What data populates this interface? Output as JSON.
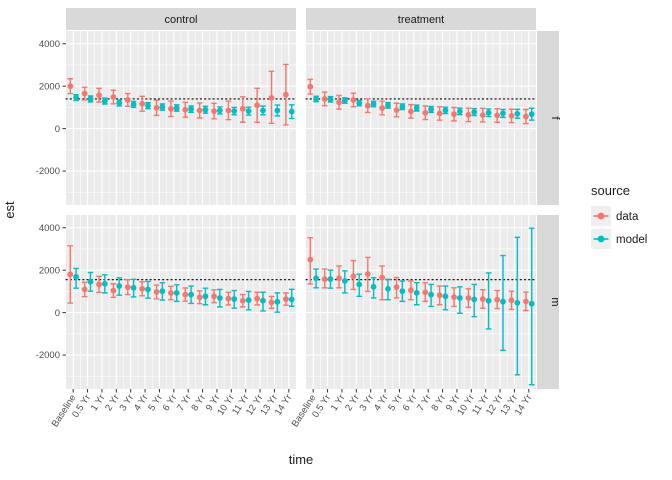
{
  "chart_data": {
    "type": "pointrange-errorbar-faceted",
    "title": "",
    "xlabel": "time",
    "ylabel": "est",
    "ylim": [
      -3600,
      4600
    ],
    "y_ticks": [
      4000,
      2000,
      0,
      -2000
    ],
    "grid": true,
    "legend_position": "right",
    "categories": [
      "Baseline",
      "0.5 Yr",
      "1 Yr",
      "2 Yr",
      "3 Yr",
      "4 Yr",
      "5 Yr",
      "6 Yr",
      "7 Yr",
      "8 Yr",
      "9 Yr",
      "10 Yr",
      "11 Yr",
      "12 Yr",
      "13 Yr",
      "14 Yr"
    ],
    "facet_cols": [
      "control",
      "treatment"
    ],
    "facet_rows": [
      "f",
      "m"
    ],
    "ref_lines": {
      "f": 1400,
      "m": 1550
    },
    "legend": {
      "title": "source",
      "entries": [
        {
          "label": "data",
          "key": "data"
        },
        {
          "label": "model",
          "key": "model"
        }
      ]
    },
    "colors": {
      "data": "#F8766D",
      "model": "#00BFC4",
      "panel_bg": "#EBEBEB",
      "strip_bg": "#D9D9D9",
      "grid": "#FFFFFF",
      "legend_key_bg": "#EFEFEF",
      "axis_text": "#4D4D4D",
      "title_text": "#1A1A1A",
      "tick_mark": "#333333",
      "ref_line": "#000000"
    },
    "panels": [
      {
        "col": "control",
        "row": "f",
        "series": {
          "data": {
            "est": [
              2000,
              1650,
              1575,
              1490,
              1350,
              1170,
              980,
              935,
              890,
              855,
              825,
              855,
              935,
              1100,
              1450,
              1600
            ],
            "lo": [
              1650,
              1350,
              1250,
              1170,
              1050,
              820,
              620,
              570,
              540,
              500,
              460,
              420,
              300,
              300,
              250,
              175
            ],
            "hi": [
              2350,
              1950,
              1900,
              1810,
              1650,
              1520,
              1340,
              1300,
              1240,
              1210,
              1190,
              1290,
              1500,
              1900,
              2700,
              3025
            ]
          },
          "model": {
            "est": [
              1460,
              1400,
              1300,
              1210,
              1140,
              1080,
              1015,
              970,
              920,
              890,
              855,
              825,
              825,
              855,
              855,
              800
            ],
            "lo": [
              1320,
              1260,
              1160,
              1070,
              1000,
              940,
              870,
              820,
              770,
              730,
              690,
              650,
              640,
              650,
              600,
              480
            ],
            "hi": [
              1600,
              1540,
              1440,
              1350,
              1280,
              1220,
              1160,
              1120,
              1070,
              1050,
              1020,
              1000,
              1010,
              1060,
              1110,
              1120
            ]
          }
        }
      },
      {
        "col": "treatment",
        "row": "f",
        "series": {
          "data": {
            "est": [
              1975,
              1400,
              1240,
              1350,
              1080,
              970,
              875,
              810,
              745,
              715,
              680,
              650,
              635,
              620,
              600,
              570
            ],
            "lo": [
              1630,
              1080,
              920,
              1030,
              760,
              650,
              555,
              490,
              425,
              395,
              365,
              330,
              315,
              300,
              285,
              240
            ],
            "hi": [
              2320,
              1720,
              1560,
              1670,
              1400,
              1290,
              1195,
              1130,
              1065,
              1035,
              995,
              970,
              955,
              940,
              915,
              900
            ]
          },
          "model": {
            "est": [
              1400,
              1380,
              1320,
              1205,
              1160,
              1095,
              1030,
              970,
              905,
              860,
              810,
              780,
              745,
              715,
              700,
              680
            ],
            "lo": [
              1270,
              1250,
              1190,
              1075,
              1030,
              965,
              900,
              830,
              765,
              710,
              655,
              615,
              570,
              530,
              490,
              400
            ],
            "hi": [
              1530,
              1510,
              1450,
              1335,
              1290,
              1225,
              1160,
              1110,
              1045,
              1010,
              965,
              945,
              920,
              900,
              910,
              960
            ]
          }
        }
      },
      {
        "col": "control",
        "row": "m",
        "series": {
          "data": {
            "est": [
              1800,
              1090,
              1330,
              1040,
              1200,
              1120,
              975,
              925,
              850,
              720,
              770,
              660,
              560,
              660,
              480,
              640
            ],
            "lo": [
              450,
              750,
              950,
              720,
              850,
              790,
              650,
              610,
              540,
              420,
              470,
              360,
              270,
              360,
              200,
              350
            ],
            "hi": [
              3150,
              1430,
              1710,
              1360,
              1550,
              1450,
              1300,
              1240,
              1160,
              1020,
              1070,
              960,
              850,
              960,
              760,
              930
            ]
          },
          "model": {
            "est": [
              1680,
              1456,
              1360,
              1250,
              1170,
              1090,
              1010,
              930,
              850,
              770,
              690,
              640,
              590,
              560,
              510,
              620
            ],
            "lo": [
              1150,
              1010,
              930,
              820,
              740,
              680,
              590,
              530,
              430,
              370,
              270,
              210,
              130,
              80,
              20,
              300
            ],
            "hi": [
              2080,
              1890,
              1780,
              1640,
              1570,
              1470,
              1410,
              1310,
              1250,
              1150,
              1090,
              1040,
              1000,
              960,
              930,
              1100
            ]
          }
        }
      },
      {
        "col": "treatment",
        "row": "m",
        "series": {
          "data": {
            "est": [
              2500,
              1580,
              1620,
              1710,
              1820,
              1650,
              1200,
              1055,
              960,
              820,
              730,
              690,
              640,
              610,
              580,
              530
            ],
            "lo": [
              1350,
              1170,
              1170,
              1090,
              1000,
              610,
              690,
              610,
              530,
              370,
              290,
              250,
              210,
              190,
              150,
              100
            ],
            "hi": [
              3530,
              2050,
              2200,
              2450,
              2600,
              2200,
              1650,
              1490,
              1410,
              1250,
              1170,
              1120,
              1080,
              1040,
              1010,
              970
            ]
          },
          "model": {
            "est": [
              1620,
              1580,
              1490,
              1330,
              1215,
              1120,
              1010,
              930,
              850,
              770,
              690,
              620,
              560,
              520,
              460,
              420
            ],
            "lo": [
              1170,
              1150,
              930,
              770,
              690,
              610,
              530,
              370,
              290,
              130,
              -30,
              -190,
              -770,
              -1780,
              -2930,
              -3400
            ],
            "hi": [
              2050,
              2000,
              1970,
              1810,
              1646,
              1570,
              1490,
              1410,
              1330,
              1250,
              1215,
              1330,
              1870,
              2690,
              3550,
              3980
            ]
          }
        }
      }
    ]
  }
}
